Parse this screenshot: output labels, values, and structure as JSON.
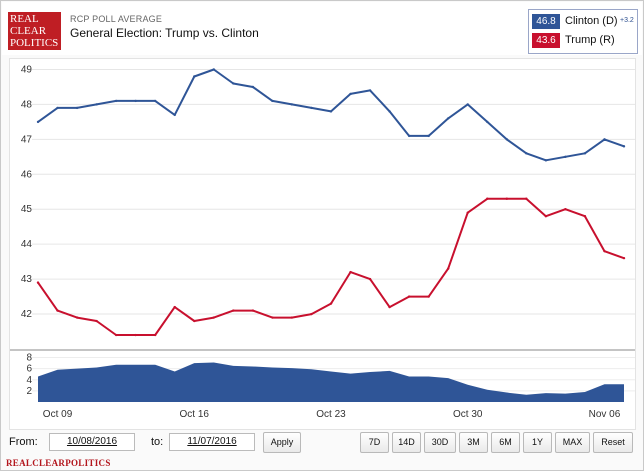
{
  "header": {
    "logo_lines": [
      "REAL",
      "CLEAR",
      "POLITICS"
    ],
    "kicker": "RCP POLL AVERAGE",
    "title": "General Election: Trump vs. Clinton"
  },
  "legend": {
    "items": [
      {
        "value": "46.8",
        "name": "Clinton (D)",
        "spread": "+3.2",
        "color": "#2f5597"
      },
      {
        "value": "43.6",
        "name": "Trump (R)",
        "spread": "",
        "color": "#c8102e"
      }
    ]
  },
  "chart_data": {
    "type": "line",
    "x_tick_labels": [
      "Oct 09",
      "Oct 16",
      "Oct 23",
      "Oct 30",
      "Nov 06"
    ],
    "x_dates": [
      "10/08",
      "10/09",
      "10/10",
      "10/11",
      "10/12",
      "10/13",
      "10/14",
      "10/15",
      "10/16",
      "10/17",
      "10/18",
      "10/19",
      "10/20",
      "10/21",
      "10/22",
      "10/23",
      "10/24",
      "10/25",
      "10/26",
      "10/27",
      "10/28",
      "10/29",
      "10/30",
      "10/31",
      "11/01",
      "11/02",
      "11/03",
      "11/04",
      "11/05",
      "11/06",
      "11/07"
    ],
    "ylim": [
      41,
      49.3
    ],
    "yticks": [
      42,
      43,
      44,
      45,
      46,
      47,
      48,
      49
    ],
    "series": [
      {
        "name": "Clinton (D)",
        "color": "#2f5597",
        "values": [
          47.5,
          47.9,
          47.9,
          48.0,
          48.1,
          48.1,
          48.1,
          47.7,
          48.8,
          49.0,
          48.6,
          48.5,
          48.1,
          48.0,
          47.9,
          47.8,
          48.3,
          48.4,
          47.8,
          47.1,
          47.1,
          47.6,
          48.0,
          47.5,
          47.0,
          46.6,
          46.4,
          46.5,
          46.6,
          47.0,
          46.8
        ]
      },
      {
        "name": "Trump (R)",
        "color": "#c8102e",
        "values": [
          42.9,
          42.1,
          41.9,
          41.8,
          41.4,
          41.4,
          41.4,
          42.2,
          41.8,
          41.9,
          42.1,
          42.1,
          41.9,
          41.9,
          42.0,
          42.3,
          43.2,
          43.0,
          42.2,
          42.5,
          42.5,
          43.3,
          44.9,
          45.3,
          45.3,
          45.3,
          44.8,
          45.0,
          44.8,
          43.8,
          43.6
        ]
      }
    ],
    "spread": {
      "color": "#2f5597",
      "ylim": [
        0,
        9
      ],
      "yticks": [
        2,
        4,
        6,
        8
      ],
      "values": [
        4.6,
        5.8,
        6.0,
        6.2,
        6.7,
        6.7,
        6.7,
        5.5,
        7.0,
        7.1,
        6.5,
        6.4,
        6.2,
        6.1,
        5.9,
        5.5,
        5.1,
        5.4,
        5.6,
        4.6,
        4.6,
        4.3,
        3.1,
        2.2,
        1.7,
        1.3,
        1.6,
        1.5,
        1.8,
        3.2,
        3.2
      ]
    }
  },
  "controls": {
    "from_label": "From:",
    "from_value": "10/08/2016",
    "to_label": "to:",
    "to_value": "11/07/2016",
    "apply_label": "Apply",
    "range_buttons": [
      "7D",
      "14D",
      "30D",
      "3M",
      "6M",
      "1Y",
      "MAX",
      "Reset"
    ]
  },
  "footer": {
    "brand": "REALCLEARPOLITICS"
  }
}
